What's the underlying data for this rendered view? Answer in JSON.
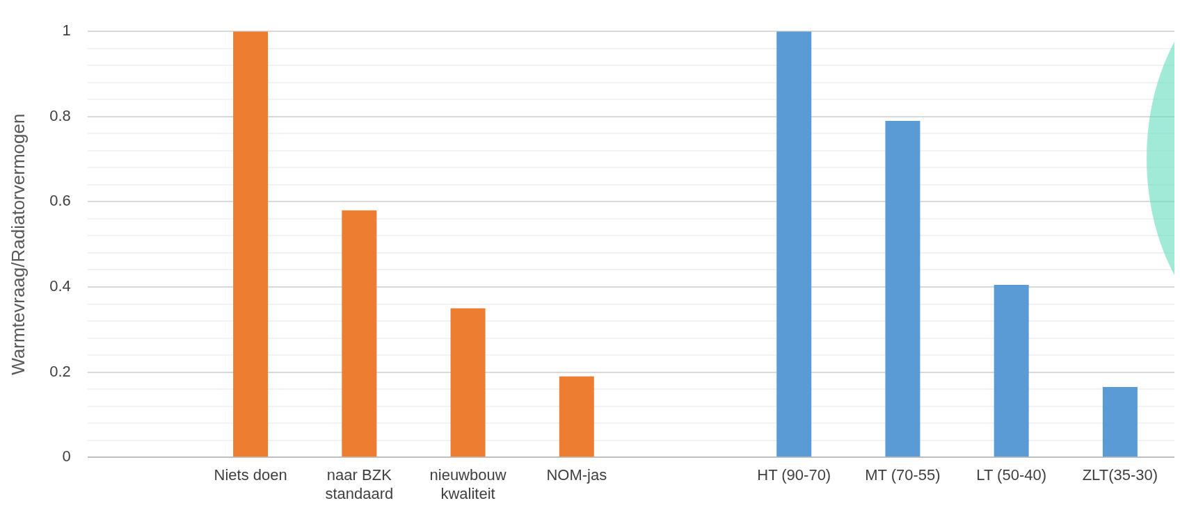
{
  "chart_data": {
    "type": "bar",
    "ylabel": "Warmtevraag/Radiatorvermogen",
    "categories": [
      null,
      "Niets doen",
      "naar BZK standaard",
      "nieuwbouw kwaliteit",
      "NOM-jas",
      null,
      "HT (90-70)",
      "MT (70-55)",
      "LT (50-40)",
      "ZLT(35-30)"
    ],
    "values": [
      null,
      1,
      0.58,
      0.35,
      0.19,
      null,
      1,
      0.79,
      0.405,
      0.165
    ],
    "colors": [
      "#ed7d31",
      "#ed7d31",
      "#ed7d31",
      "#ed7d31",
      "#ed7d31",
      "#5b9bd5",
      "#5b9bd5",
      "#5b9bd5",
      "#5b9bd5",
      "#5b9bd5"
    ],
    "ylim": [
      0,
      1
    ],
    "yticks": [
      0,
      {
        "value": 0.04,
        "label": null
      },
      {
        "value": 0.08,
        "label": null
      },
      {
        "value": 0.12,
        "label": null
      },
      {
        "value": 0.16,
        "label": null
      },
      0.2,
      {
        "value": 0.24,
        "label": null
      },
      {
        "value": 0.28,
        "label": null
      },
      {
        "value": 0.32,
        "label": null
      },
      {
        "value": 0.36,
        "label": null
      },
      0.4,
      {
        "value": 0.44,
        "label": null
      },
      {
        "value": 0.48,
        "label": null
      },
      {
        "value": 0.52,
        "label": null
      },
      {
        "value": 0.56,
        "label": null
      },
      0.6,
      {
        "value": 0.64,
        "label": null
      },
      {
        "value": 0.68,
        "label": null
      },
      {
        "value": 0.72,
        "label": null
      },
      {
        "value": 0.76,
        "label": null
      },
      0.8,
      {
        "value": 0.84,
        "label": null
      },
      {
        "value": 0.88,
        "label": null
      },
      {
        "value": 0.92,
        "label": null
      },
      {
        "value": 0.96,
        "label": null
      },
      1
    ],
    "grid": "y",
    "legend": false
  }
}
